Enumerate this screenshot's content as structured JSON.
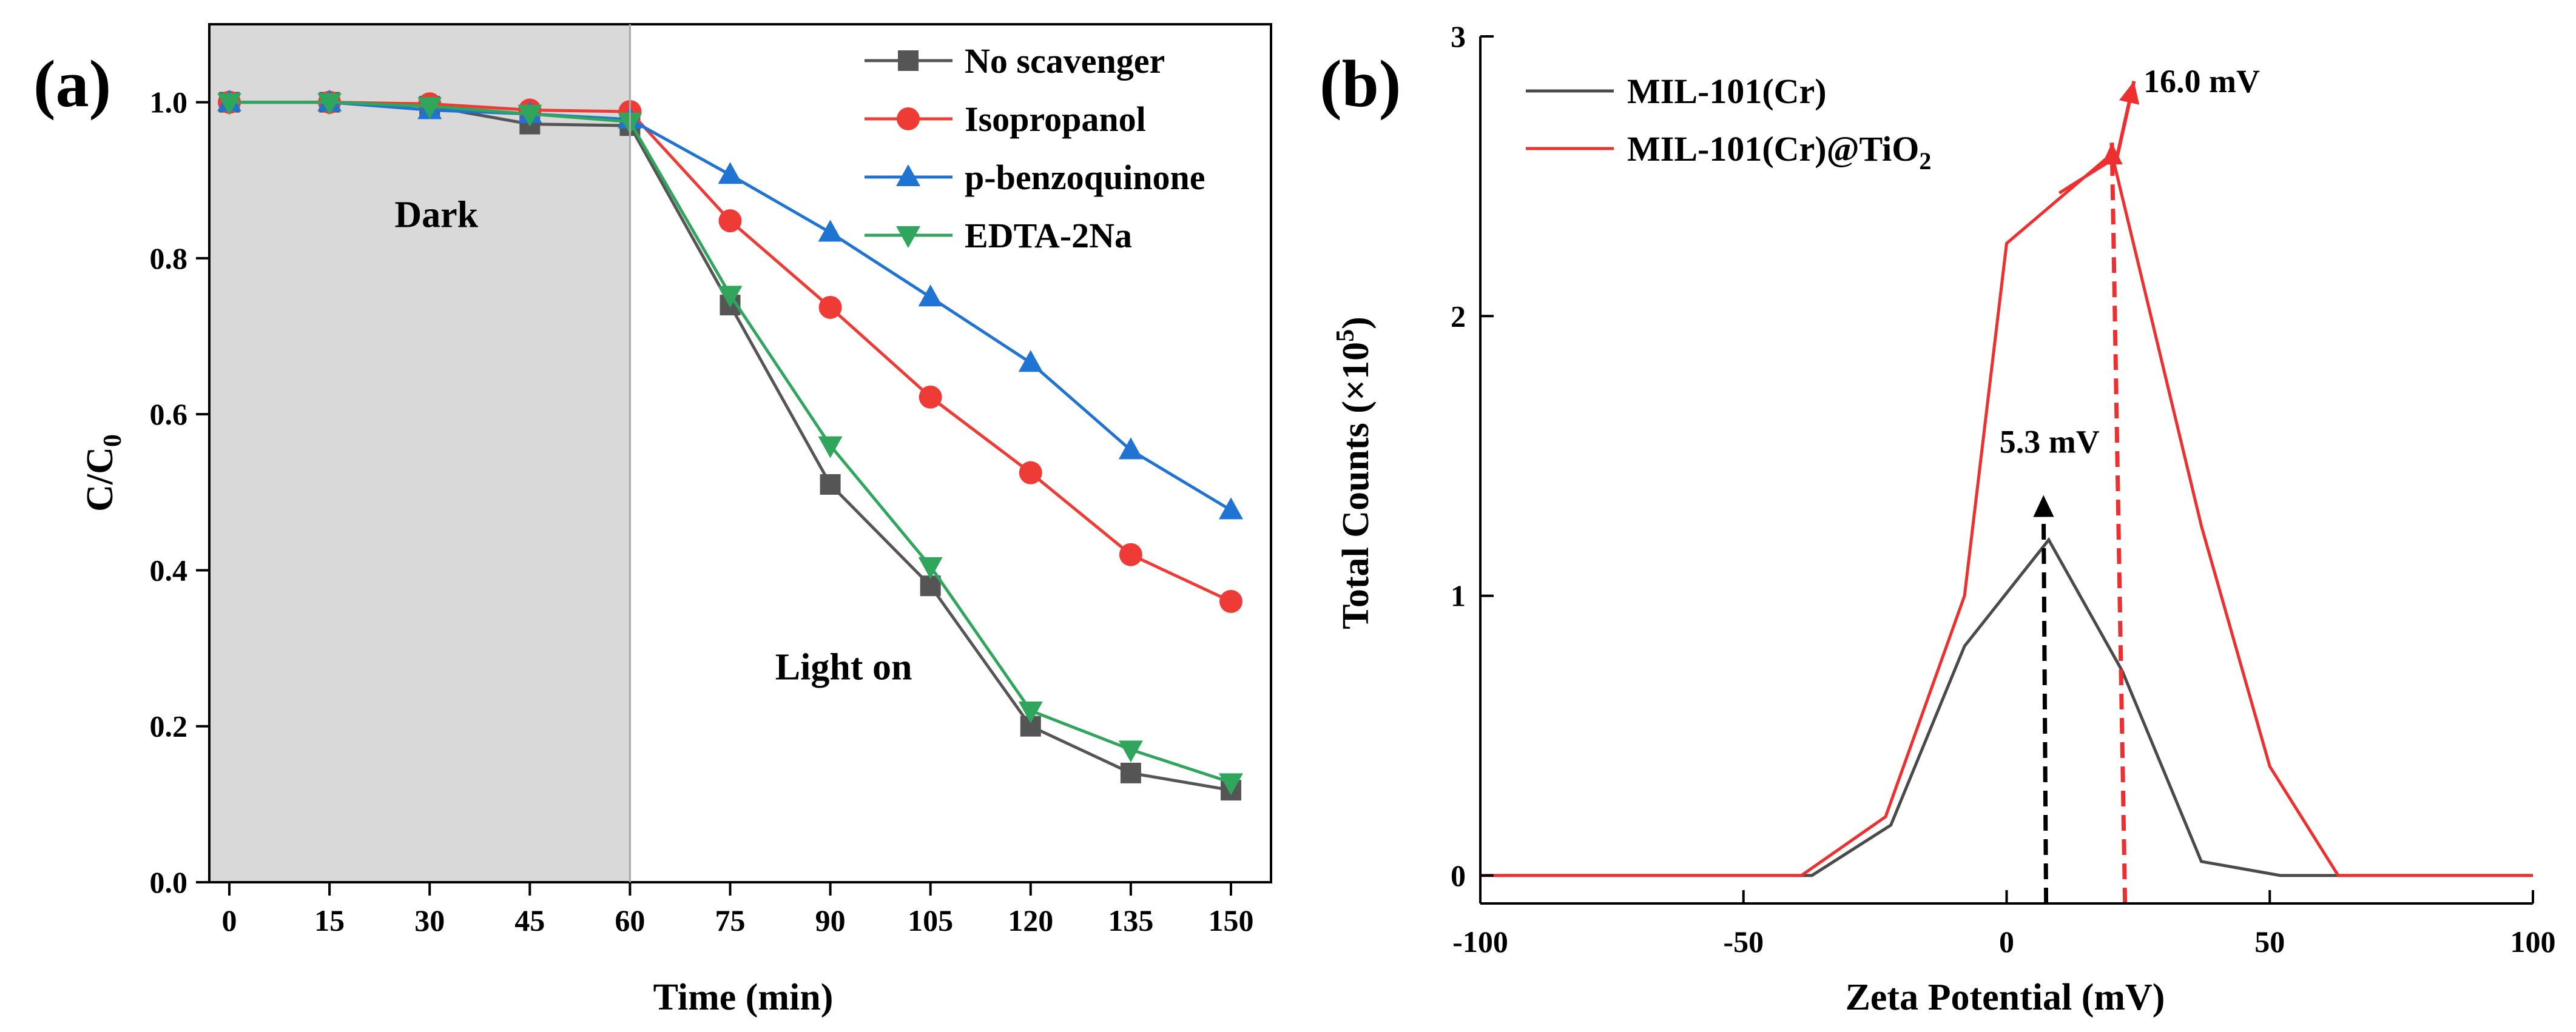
{
  "chart_data": [
    {
      "panel_label": "(a)",
      "type": "line",
      "xlabel": "Time (min)",
      "ylabel_main": "C/C",
      "ylabel_sub": "0",
      "xlim": [
        -3,
        156
      ],
      "ylim": [
        0,
        1.1
      ],
      "xticks": [
        0,
        15,
        30,
        45,
        60,
        75,
        90,
        105,
        120,
        135,
        150
      ],
      "xtick_labels": [
        "0",
        "15",
        "30",
        "45",
        "60",
        "75",
        "90",
        "105",
        "120",
        "135",
        "150"
      ],
      "yticks": [
        0,
        0.2,
        0.4,
        0.6,
        0.8,
        1.0
      ],
      "ytick_labels": [
        "0.0",
        "0.2",
        "0.4",
        "0.6",
        "0.8",
        "1.0"
      ],
      "dark_region": {
        "x_start": -3,
        "x_end": 60,
        "color": "#d9d9d9"
      },
      "annotations": [
        {
          "text": "Dark",
          "x": 31,
          "y": 0.84
        },
        {
          "text": "Light on",
          "x": 92,
          "y": 0.26
        }
      ],
      "legend_position": "top-right",
      "x": [
        0,
        15,
        30,
        45,
        60,
        75,
        90,
        105,
        120,
        135,
        150
      ],
      "series": [
        {
          "name": "No scavenger",
          "color": "#555555",
          "marker": "square",
          "values": [
            1.0,
            1.0,
            0.995,
            0.972,
            0.97,
            0.74,
            0.51,
            0.38,
            0.2,
            0.14,
            0.118
          ]
        },
        {
          "name": "Isopropanol",
          "color": "#ee3b35",
          "marker": "circle",
          "values": [
            1.0,
            1.0,
            0.998,
            0.99,
            0.988,
            0.848,
            0.737,
            0.622,
            0.525,
            0.42,
            0.36
          ]
        },
        {
          "name": "p-benzoquinone",
          "color": "#1f74d3",
          "marker": "triangle-up",
          "values": [
            1.0,
            1.0,
            0.99,
            0.985,
            0.978,
            0.907,
            0.833,
            0.75,
            0.666,
            0.554,
            0.477
          ]
        },
        {
          "name": "EDTA-2Na",
          "color": "#2fa65c",
          "marker": "triangle-down",
          "values": [
            1.0,
            1.0,
            0.995,
            0.985,
            0.975,
            0.753,
            0.56,
            0.405,
            0.22,
            0.17,
            0.128
          ]
        }
      ]
    },
    {
      "panel_label": "(b)",
      "type": "line",
      "xlabel": "Zeta Potential (mV)",
      "ylabel_main": "Total Counts (×10",
      "ylabel_sup": "5",
      "ylabel_end": ")",
      "xlim": [
        -100,
        100
      ],
      "ylim": [
        -0.1,
        3
      ],
      "xticks": [
        -100,
        -50,
        0,
        50,
        100
      ],
      "xtick_labels": [
        "-100",
        "-50",
        "0",
        "50",
        "100"
      ],
      "yticks": [
        0,
        1,
        2,
        3
      ],
      "ytick_labels": [
        "0",
        "1",
        "2",
        "3"
      ],
      "legend_position": "top-left",
      "series": [
        {
          "name": "MIL-101(Cr)",
          "color": "#4a4a4a",
          "x": [
            -100,
            -38,
            -37,
            -22,
            -8,
            8,
            22,
            37,
            52,
            68,
            100
          ],
          "values": [
            0,
            0,
            0,
            0.18,
            0.82,
            1.2,
            0.73,
            0.05,
            0,
            0,
            0
          ]
        },
        {
          "name_main": "MIL-101(Cr)@TiO",
          "name_sub": "2",
          "color": "#ee2f2f",
          "x": [
            -100,
            -39,
            -23,
            -8,
            0,
            20,
            37,
            50,
            63,
            100
          ],
          "values": [
            0,
            0,
            0.21,
            1.0,
            2.26,
            2.58,
            1.25,
            0.39,
            0,
            0
          ]
        }
      ],
      "annotations": [
        {
          "text": "5.3 mV",
          "color": "#000000",
          "x_from": 7.5,
          "x_to": 7.0,
          "y_from": -0.1,
          "y_to": 1.36
        },
        {
          "text": "16.0 mV",
          "color": "#ee2f2f",
          "x_from": 22.5,
          "x_to": 20,
          "y_from": -0.1,
          "y_to": 2.62
        }
      ]
    }
  ]
}
